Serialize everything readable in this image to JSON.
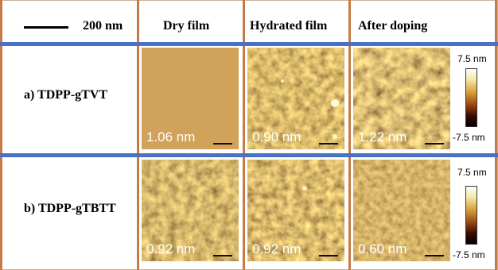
{
  "header": {
    "scale_label": "200 nm",
    "columns": [
      "Dry film",
      "Hydrated film",
      "After doping"
    ]
  },
  "rows": [
    {
      "label": "a) TDPP-gTVT",
      "rms": [
        "1.06 nm",
        "0.90 nm",
        "1.22 nm"
      ]
    },
    {
      "label": "b) TDPP-gTBTT",
      "rms": [
        "0.92 nm",
        "0.92 nm",
        "0.60 nm"
      ]
    }
  ],
  "colorbar": {
    "max_label": "7.5 nm",
    "min_label": "-7.5 nm"
  },
  "colors": {
    "divider_blue": "#4a72c4",
    "divider_orange": "#c77a45",
    "afm_base": "#a45a1c"
  }
}
